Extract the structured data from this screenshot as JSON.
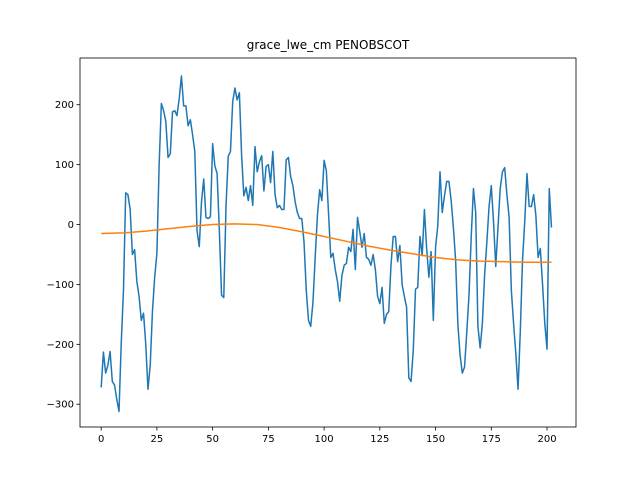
{
  "chart_data": {
    "type": "line",
    "title": "grace_lwe_cm PENOBSCOT",
    "xlabel": "",
    "ylabel": "",
    "xlim": [
      -9.5,
      213
    ],
    "ylim": [
      -338,
      278
    ],
    "xticks": [
      0,
      25,
      50,
      75,
      100,
      125,
      150,
      175,
      200
    ],
    "yticks": [
      -300,
      -200,
      -100,
      0,
      100,
      200
    ],
    "grid": false,
    "legend": "none",
    "series": [
      {
        "color": "#1f77b4",
        "points": [
          [
            0,
            -272
          ],
          [
            1,
            -213
          ],
          [
            2,
            -248
          ],
          [
            3,
            -235
          ],
          [
            4,
            -212
          ],
          [
            5,
            -262
          ],
          [
            6,
            -268
          ],
          [
            7,
            -292
          ],
          [
            8,
            -312
          ],
          [
            9,
            -198
          ],
          [
            10,
            -110
          ],
          [
            11,
            53
          ],
          [
            12,
            50
          ],
          [
            13,
            25
          ],
          [
            14,
            -50
          ],
          [
            15,
            -42
          ],
          [
            16,
            -95
          ],
          [
            17,
            -120
          ],
          [
            18,
            -160
          ],
          [
            19,
            -148
          ],
          [
            20,
            -200
          ],
          [
            21,
            -275
          ],
          [
            22,
            -235
          ],
          [
            23,
            -145
          ],
          [
            24,
            -88
          ],
          [
            25,
            -48
          ],
          [
            26,
            100
          ],
          [
            27,
            202
          ],
          [
            28,
            190
          ],
          [
            29,
            172
          ],
          [
            30,
            112
          ],
          [
            31,
            118
          ],
          [
            32,
            188
          ],
          [
            33,
            190
          ],
          [
            34,
            182
          ],
          [
            35,
            210
          ],
          [
            36,
            248
          ],
          [
            37,
            198
          ],
          [
            38,
            198
          ],
          [
            39,
            165
          ],
          [
            40,
            175
          ],
          [
            41,
            150
          ],
          [
            42,
            122
          ],
          [
            43,
            -10
          ],
          [
            44,
            -37
          ],
          [
            45,
            38
          ],
          [
            46,
            76
          ],
          [
            47,
            12
          ],
          [
            48,
            10
          ],
          [
            49,
            13
          ],
          [
            50,
            135
          ],
          [
            51,
            98
          ],
          [
            52,
            85
          ],
          [
            53,
            -10
          ],
          [
            54,
            -118
          ],
          [
            55,
            -122
          ],
          [
            56,
            30
          ],
          [
            57,
            114
          ],
          [
            58,
            122
          ],
          [
            59,
            205
          ],
          [
            60,
            228
          ],
          [
            61,
            208
          ],
          [
            62,
            220
          ],
          [
            63,
            115
          ],
          [
            64,
            48
          ],
          [
            65,
            62
          ],
          [
            66,
            40
          ],
          [
            67,
            65
          ],
          [
            68,
            32
          ],
          [
            69,
            130
          ],
          [
            70,
            88
          ],
          [
            71,
            105
          ],
          [
            72,
            115
          ],
          [
            73,
            56
          ],
          [
            74,
            97
          ],
          [
            75,
            100
          ],
          [
            76,
            70
          ],
          [
            77,
            122
          ],
          [
            78,
            50
          ],
          [
            79,
            28
          ],
          [
            80,
            32
          ],
          [
            81,
            25
          ],
          [
            82,
            25
          ],
          [
            83,
            108
          ],
          [
            84,
            112
          ],
          [
            85,
            80
          ],
          [
            86,
            65
          ],
          [
            87,
            38
          ],
          [
            88,
            20
          ],
          [
            89,
            10
          ],
          [
            90,
            10
          ],
          [
            91,
            -30
          ],
          [
            92,
            -110
          ],
          [
            93,
            -160
          ],
          [
            94,
            -170
          ],
          [
            95,
            -130
          ],
          [
            96,
            -55
          ],
          [
            97,
            15
          ],
          [
            98,
            58
          ],
          [
            99,
            40
          ],
          [
            100,
            107
          ],
          [
            101,
            90
          ],
          [
            102,
            18
          ],
          [
            103,
            -55
          ],
          [
            104,
            -48
          ],
          [
            105,
            -75
          ],
          [
            106,
            -95
          ],
          [
            107,
            -128
          ],
          [
            108,
            -85
          ],
          [
            109,
            -68
          ],
          [
            110,
            -65
          ],
          [
            111,
            -38
          ],
          [
            112,
            -45
          ],
          [
            113,
            -8
          ],
          [
            114,
            -75
          ],
          [
            115,
            12
          ],
          [
            116,
            -12
          ],
          [
            117,
            -38
          ],
          [
            118,
            -15
          ],
          [
            119,
            -55
          ],
          [
            120,
            -58
          ],
          [
            121,
            -68
          ],
          [
            122,
            -50
          ],
          [
            123,
            -75
          ],
          [
            124,
            -120
          ],
          [
            125,
            -132
          ],
          [
            126,
            -105
          ],
          [
            127,
            -165
          ],
          [
            128,
            -150
          ],
          [
            129,
            -145
          ],
          [
            130,
            -68
          ],
          [
            131,
            -20
          ],
          [
            132,
            -20
          ],
          [
            133,
            -62
          ],
          [
            134,
            -35
          ],
          [
            135,
            -100
          ],
          [
            136,
            -120
          ],
          [
            137,
            -138
          ],
          [
            138,
            -256
          ],
          [
            139,
            -262
          ],
          [
            140,
            -210
          ],
          [
            141,
            -108
          ],
          [
            142,
            -105
          ],
          [
            143,
            -20
          ],
          [
            144,
            -52
          ],
          [
            145,
            25
          ],
          [
            146,
            -40
          ],
          [
            147,
            -88
          ],
          [
            148,
            -45
          ],
          [
            149,
            -160
          ],
          [
            150,
            -38
          ],
          [
            151,
            -2
          ],
          [
            152,
            88
          ],
          [
            153,
            20
          ],
          [
            154,
            48
          ],
          [
            155,
            72
          ],
          [
            156,
            72
          ],
          [
            157,
            40
          ],
          [
            158,
            -5
          ],
          [
            159,
            -60
          ],
          [
            160,
            -166
          ],
          [
            161,
            -218
          ],
          [
            162,
            -248
          ],
          [
            163,
            -238
          ],
          [
            164,
            -180
          ],
          [
            165,
            -118
          ],
          [
            166,
            -20
          ],
          [
            167,
            60
          ],
          [
            168,
            20
          ],
          [
            169,
            -170
          ],
          [
            170,
            -206
          ],
          [
            171,
            -165
          ],
          [
            172,
            -85
          ],
          [
            173,
            -30
          ],
          [
            174,
            30
          ],
          [
            175,
            65
          ],
          [
            176,
            5
          ],
          [
            177,
            -70
          ],
          [
            178,
            -5
          ],
          [
            179,
            60
          ],
          [
            180,
            88
          ],
          [
            181,
            95
          ],
          [
            182,
            50
          ],
          [
            183,
            12
          ],
          [
            184,
            -110
          ],
          [
            185,
            -165
          ],
          [
            186,
            -215
          ],
          [
            187,
            -275
          ],
          [
            188,
            -180
          ],
          [
            189,
            -60
          ],
          [
            190,
            5
          ],
          [
            191,
            85
          ],
          [
            192,
            30
          ],
          [
            193,
            30
          ],
          [
            194,
            50
          ],
          [
            195,
            15
          ],
          [
            196,
            -55
          ],
          [
            197,
            -40
          ],
          [
            198,
            -100
          ],
          [
            199,
            -165
          ],
          [
            200,
            -208
          ],
          [
            201,
            60
          ],
          [
            202,
            -5
          ]
        ]
      },
      {
        "color": "#ff7f0e",
        "points": [
          [
            0,
            -15
          ],
          [
            10,
            -14
          ],
          [
            20,
            -11
          ],
          [
            30,
            -7
          ],
          [
            40,
            -3
          ],
          [
            50,
            0
          ],
          [
            60,
            1
          ],
          [
            70,
            0
          ],
          [
            80,
            -5
          ],
          [
            90,
            -12
          ],
          [
            100,
            -20
          ],
          [
            110,
            -28
          ],
          [
            120,
            -36
          ],
          [
            130,
            -43
          ],
          [
            140,
            -49
          ],
          [
            150,
            -55
          ],
          [
            160,
            -59
          ],
          [
            170,
            -61
          ],
          [
            180,
            -62
          ],
          [
            190,
            -63
          ],
          [
            200,
            -63
          ],
          [
            202,
            -63
          ]
        ]
      }
    ]
  }
}
